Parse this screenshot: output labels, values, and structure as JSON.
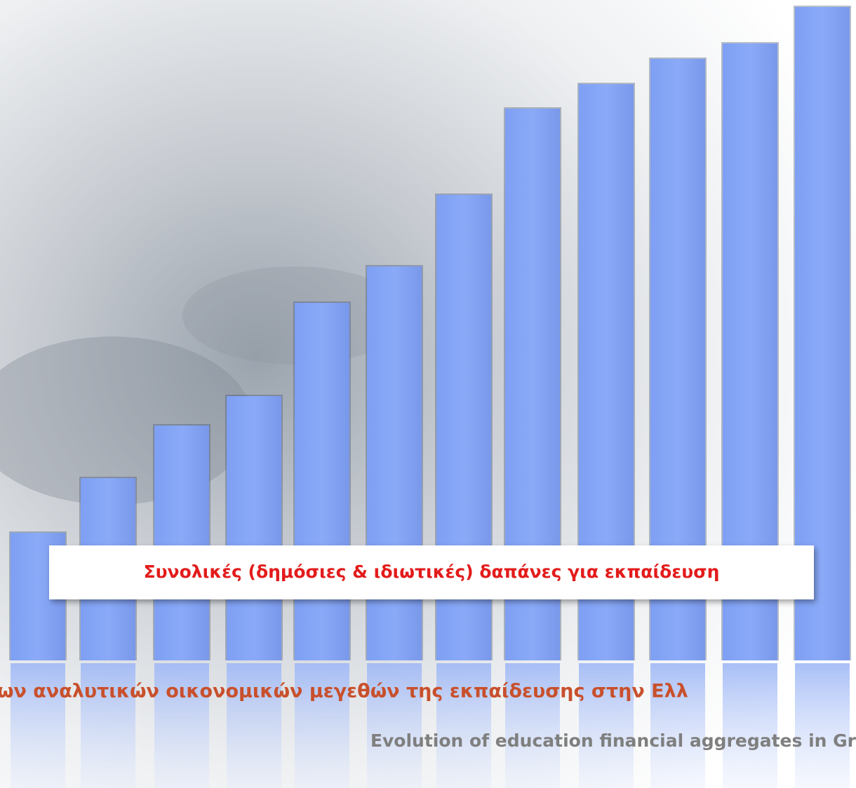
{
  "banner": {
    "text": "Συνολικές (δημόσιες & ιδιωτικές) δαπάνες για εκπαίδευση"
  },
  "title": {
    "greek": "ων αναλυτικών οικονομικών μεγεθών της εκπαίδευσης στην Ελλ",
    "english": "Evolution of education financial aggregates in Gr"
  }
}
